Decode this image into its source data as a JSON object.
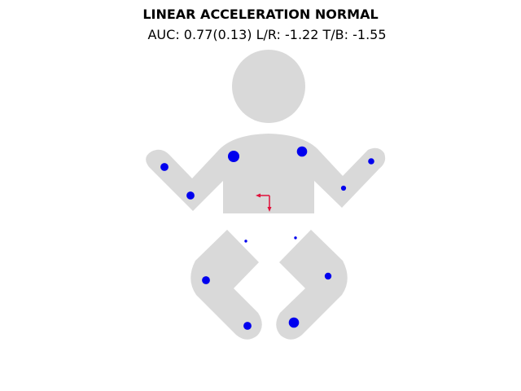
{
  "chart_data": {
    "type": "scatter",
    "title": "LINEAR ACCELERATION NORMAL",
    "subtitle": "AUC: 0.77(0.13) L/R: -1.22 T/B: -1.55",
    "metrics": {
      "auc": 0.77,
      "auc_sd": 0.13,
      "left_right": -1.22,
      "top_bottom": -1.55
    },
    "body_figure": "infant-silhouette",
    "sensors": [
      {
        "name": "left-hand",
        "magnitude": 0.55
      },
      {
        "name": "left-forearm",
        "magnitude": 0.55
      },
      {
        "name": "left-shoulder",
        "magnitude": 0.85
      },
      {
        "name": "right-shoulder",
        "magnitude": 0.75
      },
      {
        "name": "right-hand",
        "magnitude": 0.4
      },
      {
        "name": "right-forearm",
        "magnitude": 0.3
      },
      {
        "name": "left-hip",
        "magnitude": 0.1
      },
      {
        "name": "right-hip",
        "magnitude": 0.1
      },
      {
        "name": "left-knee",
        "magnitude": 0.55
      },
      {
        "name": "right-knee",
        "magnitude": 0.45
      },
      {
        "name": "left-foot",
        "magnitude": 0.55
      },
      {
        "name": "right-foot",
        "magnitude": 0.75
      }
    ],
    "colors": {
      "body": "#d9d9d9",
      "sensor": "#0000ee",
      "arrow": "#e0103a"
    }
  }
}
